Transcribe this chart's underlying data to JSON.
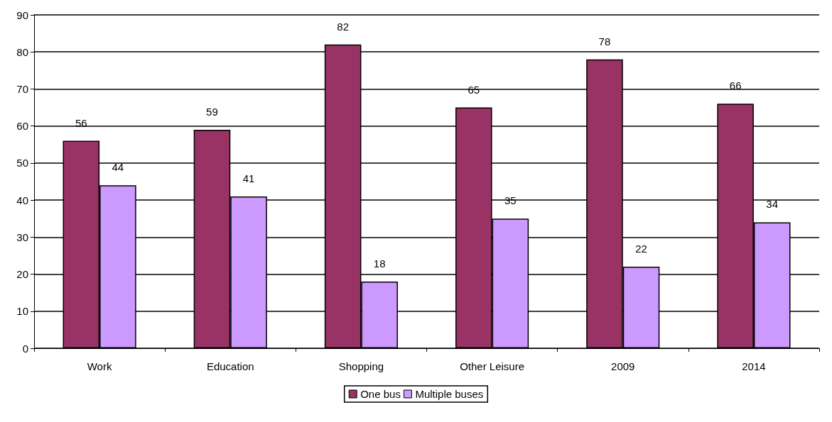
{
  "chart_data": {
    "type": "bar",
    "categories": [
      "Work",
      "Education",
      "Shopping",
      "Other Leisure",
      "2009",
      "2014"
    ],
    "series": [
      {
        "name": "One bus",
        "color": "#993366",
        "values": [
          56,
          59,
          82,
          65,
          78,
          66
        ]
      },
      {
        "name": "Multiple buses",
        "color": "#cc99ff",
        "values": [
          44,
          41,
          18,
          35,
          22,
          34
        ]
      }
    ],
    "ylim": [
      0,
      90
    ],
    "yticks": [
      0,
      10,
      20,
      30,
      40,
      50,
      60,
      70,
      80,
      90
    ],
    "grid": "y",
    "legend": "bottom",
    "data_labels": true
  }
}
